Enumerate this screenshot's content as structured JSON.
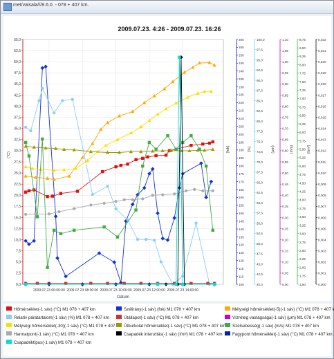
{
  "window": {
    "title": "met/vaisala///8.6.0. - 078 + 407 km."
  },
  "chart_data": {
    "type": "line",
    "title": "2009.07.23. 4:26 - 2009.07.23. 16:26",
    "xlabel": "Dátum",
    "x_ticks": [
      "2009.07.23 06:00:00",
      "2009.07.23 08:00:00",
      "2009.07.23 10:00:00",
      "2009.07.23 12:00:00",
      "2009.07.23 14:00:00"
    ],
    "x_tick_hours": [
      6,
      8,
      10,
      12,
      14
    ],
    "xlim_hours": [
      4.43,
      16.43
    ],
    "axes": [
      {
        "id": "a1",
        "label": "(°C)",
        "color": "#cc0000",
        "min": 0,
        "max": 55,
        "ticks": [
          "0,0",
          "2,5",
          "5,0",
          "7,5",
          "10,0",
          "12,5",
          "15,0",
          "17,5",
          "20,0",
          "22,5",
          "25,0",
          "27,5",
          "30,0",
          "32,5",
          "35,0",
          "37,5",
          "40,0",
          "42,5",
          "45,0",
          "47,5",
          "50,0",
          "52,5",
          "55,0"
        ]
      },
      {
        "id": "a2",
        "label": "(fok)",
        "color": "#0000cc",
        "min": 105,
        "max": 260,
        "ticks": [
          "105",
          "110",
          "115",
          "120",
          "125",
          "130",
          "135",
          "140",
          "145",
          "150",
          "155",
          "160",
          "165",
          "170",
          "175",
          "180",
          "185",
          "190",
          "195",
          "200",
          "205",
          "210",
          "215",
          "220",
          "225",
          "230",
          "235",
          "240",
          "245",
          "250",
          "255",
          "260"
        ]
      },
      {
        "id": "a3",
        "label": "(%)",
        "color": "#66ccff",
        "min": 40,
        "max": 100,
        "ticks": [
          "40,0",
          "42,5",
          "45,0",
          "47,5",
          "50,0",
          "52,5",
          "55,0",
          "57,5",
          "60,0",
          "62,5",
          "65,0",
          "67,5",
          "70,0",
          "72,5",
          "75,0",
          "77,5",
          "80,0",
          "82,5",
          "85,0",
          "87,5",
          "90,0",
          "92,5",
          "95,0",
          "97,5",
          "100,0"
        ]
      },
      {
        "id": "a4",
        "label": "(µm)",
        "color": "#cc00cc",
        "min": 0,
        "max": 1.1,
        "ticks": [
          "0,00",
          "0,05",
          "0,10",
          "0,15",
          "0,20",
          "0,25",
          "0,30",
          "0,35",
          "0,40",
          "0,45",
          "0,50",
          "0,55",
          "0,60",
          "0,65",
          "0,70",
          "0,75",
          "0,80",
          "0,85",
          "0,90",
          "0,95",
          "1,00",
          "1,05",
          "1,10"
        ]
      },
      {
        "id": "a5",
        "label": "(m/s)",
        "color": "#33aa33",
        "min": 1.5,
        "max": 8.75,
        "ticks": [
          "1,50",
          "1,75",
          "2,00",
          "2,25",
          "2,50",
          "2,75",
          "3,00",
          "3,25",
          "3,50",
          "3,75",
          "4,00",
          "4,25",
          "4,50",
          "4,75",
          "5,00",
          "5,25",
          "5,50",
          "5,75",
          "6,00",
          "6,25",
          "6,50",
          "6,75",
          "7,00",
          "7,25",
          "7,50",
          "7,75",
          "8,00",
          "8,25",
          "8,50",
          "8,75"
        ]
      },
      {
        "id": "a6",
        "label": "(l/m²)",
        "color": "#000000",
        "min": 0,
        "max": 0.022,
        "ticks": [
          "0,000",
          "0,001",
          "0,002",
          "0,003",
          "0,004",
          "0,005",
          "0,006",
          "0,007",
          "0,008",
          "0,009",
          "0,010",
          "0,011",
          "0,012",
          "0,013",
          "0,014",
          "0,015",
          "0,016",
          "0,017",
          "0,018",
          "0,019",
          "0,020",
          "0,021",
          "0,022"
        ]
      }
    ],
    "series": [
      {
        "name": "Hőmérséklet(-1 sáv) (°C) M1 078 + 407 km",
        "color": "#dd1111",
        "marker": "square",
        "axis": "a1",
        "points": [
          [
            4.6,
            20.7
          ],
          [
            4.8,
            21.0
          ],
          [
            5.1,
            21.2
          ],
          [
            5.9,
            19.7
          ],
          [
            6.2,
            19.8
          ],
          [
            6.7,
            20.4
          ],
          [
            7.7,
            20.9
          ],
          [
            9.2,
            25.3
          ],
          [
            10.0,
            26.4
          ],
          [
            10.3,
            26.7
          ],
          [
            10.7,
            27.0
          ],
          [
            11.2,
            28.0
          ],
          [
            11.6,
            28.3
          ],
          [
            11.9,
            28.6
          ],
          [
            12.4,
            28.9
          ],
          [
            13.0,
            29.0
          ],
          [
            13.2,
            30.0
          ],
          [
            14.5,
            31.2
          ],
          [
            15.2,
            31.5
          ],
          [
            15.6,
            31.7
          ],
          [
            15.8,
            32.0
          ]
        ]
      },
      {
        "name": "Szélirány(-1 sáv) (fok) M1 078 + 407 km",
        "color": "#1133cc",
        "marker": "diamond",
        "axis": "a2",
        "points": [
          [
            4.6,
            132.5
          ],
          [
            4.8,
            130.4
          ],
          [
            5.1,
            132.5
          ],
          [
            5.6,
            241.9
          ],
          [
            5.8,
            242.8
          ],
          [
            6.4,
            148.0
          ],
          [
            6.5,
            121.6
          ],
          [
            7.0,
            110.0
          ],
          [
            9.0,
            124.7
          ],
          [
            9.9,
            119.0
          ],
          [
            10.3,
            106.0
          ],
          [
            10.6,
            145.0
          ],
          [
            11.0,
            155.6
          ],
          [
            11.3,
            161.7
          ],
          [
            11.7,
            166.0
          ],
          [
            12.0,
            175.0
          ],
          [
            12.2,
            178.0
          ],
          [
            12.5,
            150.0
          ],
          [
            12.8,
            134.0
          ],
          [
            13.1,
            133.0
          ],
          [
            13.5,
            147.0
          ],
          [
            13.8,
            166.0
          ],
          [
            14.0,
            175.0
          ],
          [
            15.1,
            181.6
          ],
          [
            15.4,
            160.0
          ],
          [
            15.7,
            170.0
          ]
        ]
      },
      {
        "name": "Mélységi hőmérséklet(-5)(-1 sáv) (°C) M1 078 + 407 km",
        "color": "#ffaa00",
        "marker": "triangle",
        "axis": "a1",
        "points": [
          [
            4.6,
            24.3
          ],
          [
            5.2,
            24.0
          ],
          [
            5.9,
            23.8
          ],
          [
            6.3,
            23.5
          ],
          [
            7.2,
            24.3
          ],
          [
            8.0,
            28.5
          ],
          [
            8.6,
            31.6
          ],
          [
            9.1,
            34.8
          ],
          [
            9.5,
            36.3
          ],
          [
            10.2,
            37.8
          ],
          [
            11.0,
            38.8
          ],
          [
            11.7,
            40.8
          ],
          [
            12.3,
            42.3
          ],
          [
            12.9,
            43.9
          ],
          [
            13.4,
            45.5
          ],
          [
            14.1,
            47.6
          ],
          [
            14.6,
            48.7
          ],
          [
            15.0,
            49.7
          ],
          [
            15.6,
            49.8
          ],
          [
            15.9,
            49.2
          ]
        ]
      },
      {
        "name": "Relatív páratartalom(-1 sáv) (%) M1 078 + 407 km",
        "color": "#88ccff",
        "marker": "circle",
        "axis": "a3",
        "points": [
          [
            4.6,
            78.5
          ],
          [
            4.9,
            77.6
          ],
          [
            5.4,
            85.0
          ],
          [
            5.6,
            88.0
          ],
          [
            6.3,
            82.0
          ],
          [
            6.8,
            85.0
          ],
          [
            7.4,
            85.3
          ],
          [
            8.6,
            62.0
          ],
          [
            9.5,
            64.0
          ],
          [
            10.0,
            58.5
          ],
          [
            10.7,
            55.8
          ],
          [
            11.3,
            51.0
          ],
          [
            11.8,
            51.0
          ],
          [
            12.3,
            50.8
          ],
          [
            12.7,
            45.5
          ],
          [
            13.4,
            40.0
          ],
          [
            14.0,
            42.0
          ],
          [
            14.8,
            55.0
          ],
          [
            15.6,
            40.0
          ]
        ]
      },
      {
        "name": "Útállapot(-1 sáv) (°C) M1 078 + 407 km",
        "color": "#cc3333",
        "marker": "square",
        "axis": "a1",
        "points": [
          [
            4.6,
            0.2
          ],
          [
            5.3,
            0.2
          ],
          [
            6.0,
            0.2
          ],
          [
            7.0,
            0.2
          ],
          [
            8.5,
            0.2
          ],
          [
            9.5,
            0.2
          ],
          [
            10.5,
            0.2
          ],
          [
            11.5,
            0.2
          ],
          [
            12.5,
            0.2
          ],
          [
            13.5,
            0.2
          ],
          [
            14.5,
            0.2
          ],
          [
            15.5,
            0.2
          ],
          [
            15.9,
            0.2
          ]
        ]
      },
      {
        "name": "Vízréteg vastagsága(-1 sáv) (µm) M1 078 + 407 km",
        "color": "#cc00cc",
        "marker": "plus",
        "axis": "a4",
        "points": [
          [
            4.6,
            0.0
          ],
          [
            6.0,
            0.0
          ],
          [
            8.0,
            0.0
          ],
          [
            10.0,
            0.0
          ],
          [
            12.0,
            0.0
          ],
          [
            14.0,
            0.0
          ],
          [
            15.9,
            0.0
          ]
        ]
      },
      {
        "name": "Mélységi hőmérséklet(-30)(-1 sáv) (°C) M1 078 + 407 km",
        "color": "#ffdd00",
        "marker": "triangle",
        "axis": "a1",
        "points": [
          [
            4.6,
            26.4
          ],
          [
            5.0,
            26.0
          ],
          [
            5.5,
            25.8
          ],
          [
            6.3,
            25.6
          ],
          [
            6.9,
            25.7
          ],
          [
            7.6,
            26.0
          ],
          [
            8.3,
            27.8
          ],
          [
            8.9,
            29.8
          ],
          [
            9.4,
            31.2
          ],
          [
            10.1,
            32.5
          ],
          [
            10.9,
            34.0
          ],
          [
            11.5,
            35.4
          ],
          [
            12.0,
            36.8
          ],
          [
            12.5,
            38.2
          ],
          [
            13.0,
            39.4
          ],
          [
            13.6,
            40.7
          ],
          [
            14.3,
            42.0
          ],
          [
            14.9,
            42.9
          ],
          [
            15.3,
            43.3
          ],
          [
            15.7,
            43.3
          ]
        ]
      },
      {
        "name": "Útburkolat hőmérséklet(-1 sáv) (°C) M1 078 + 407 km",
        "color": "#999900",
        "marker": "triangle",
        "axis": "a1",
        "points": [
          [
            4.6,
            31.0
          ],
          [
            5.1,
            30.8
          ],
          [
            5.8,
            30.6
          ],
          [
            6.4,
            30.5
          ],
          [
            6.9,
            30.3
          ],
          [
            7.5,
            30.2
          ],
          [
            8.5,
            29.8
          ],
          [
            9.5,
            29.6
          ],
          [
            10.2,
            29.6
          ],
          [
            10.9,
            29.8
          ],
          [
            11.5,
            29.8
          ],
          [
            12.2,
            29.9
          ],
          [
            12.8,
            30.0
          ],
          [
            13.3,
            30.0
          ],
          [
            13.9,
            30.0
          ],
          [
            14.4,
            30.0
          ],
          [
            14.9,
            30.1
          ],
          [
            15.3,
            30.1
          ],
          [
            15.8,
            30.3
          ]
        ]
      },
      {
        "name": "Szélsebesség(-1 sáv) (m/s) M1 078 + 407 km",
        "color": "#44aa44",
        "marker": "square",
        "axis": "a5",
        "points": [
          [
            4.6,
            5.7
          ],
          [
            4.8,
            5.3
          ],
          [
            5.3,
            3.5
          ],
          [
            5.6,
            5.8
          ],
          [
            5.9,
            2.0
          ],
          [
            6.3,
            3.1
          ],
          [
            6.7,
            3.0
          ],
          [
            7.5,
            3.1
          ],
          [
            9.3,
            3.2
          ],
          [
            10.1,
            2.9
          ],
          [
            11.2,
            3.7
          ],
          [
            11.6,
            5.0
          ],
          [
            12.0,
            5.7
          ],
          [
            12.4,
            5.5
          ],
          [
            13.1,
            5.9
          ],
          [
            13.6,
            5.5
          ],
          [
            14.0,
            5.7
          ],
          [
            14.5,
            5.9
          ],
          [
            15.0,
            5.5
          ],
          [
            15.4,
            5.0
          ],
          [
            15.8,
            3.1
          ]
        ]
      },
      {
        "name": "Harmatpont(-1 sáv) (°C) M1 078 + 407 km",
        "color": "#aaaaaa",
        "marker": "circle",
        "axis": "a1",
        "points": [
          [
            4.6,
            15.7
          ],
          [
            5.2,
            15.8
          ],
          [
            6.0,
            15.8
          ],
          [
            6.6,
            16.3
          ],
          [
            7.5,
            17.0
          ],
          [
            8.5,
            17.8
          ],
          [
            9.3,
            18.2
          ],
          [
            10.0,
            18.6
          ],
          [
            10.5,
            19.0
          ],
          [
            11.0,
            19.0
          ],
          [
            11.6,
            19.2
          ],
          [
            12.2,
            20.0
          ],
          [
            12.8,
            20.1
          ],
          [
            13.5,
            20.3
          ],
          [
            14.2,
            21.0
          ],
          [
            14.7,
            21.3
          ],
          [
            15.2,
            21.0
          ],
          [
            15.8,
            21.0
          ]
        ]
      },
      {
        "name": "Csapadék intenzitás(-1 sáv) (l/m²) M1 078 + 407 km",
        "color": "#000000",
        "marker": "diamond",
        "axis": "a6",
        "points": [
          [
            4.6,
            0.0
          ],
          [
            6.0,
            0.0
          ],
          [
            8.0,
            0.0
          ],
          [
            10.0,
            0.0
          ],
          [
            12.0,
            0.0
          ],
          [
            13.0,
            0.0
          ],
          [
            13.7,
            0.0
          ],
          [
            13.9,
            0.0204
          ],
          [
            14.1,
            0.0
          ],
          [
            15.9,
            0.0
          ]
        ]
      },
      {
        "name": "Fagypont hőmérséklet(-1 sáv) (°C) M1 078 + 407 km",
        "color": "#0022aa",
        "marker": "diamond",
        "axis": "a1",
        "points": [
          [
            4.6,
            0.0
          ],
          [
            6.0,
            0.0
          ],
          [
            8.0,
            0.0
          ],
          [
            10.0,
            0.0
          ],
          [
            12.0,
            0.0
          ],
          [
            14.0,
            0.0
          ],
          [
            15.9,
            0.0
          ]
        ]
      },
      {
        "name": "Csapadéktípus(-1 sáv) M1 078 + 407 km",
        "color": "#00dddd",
        "marker": "square",
        "axis": "a1",
        "points": [
          [
            4.6,
            0.0
          ],
          [
            12.5,
            0.0
          ],
          [
            13.6,
            0.0
          ],
          [
            13.8,
            51.0
          ],
          [
            14.0,
            0.0
          ],
          [
            15.9,
            0.0
          ]
        ]
      }
    ],
    "grid": true
  }
}
